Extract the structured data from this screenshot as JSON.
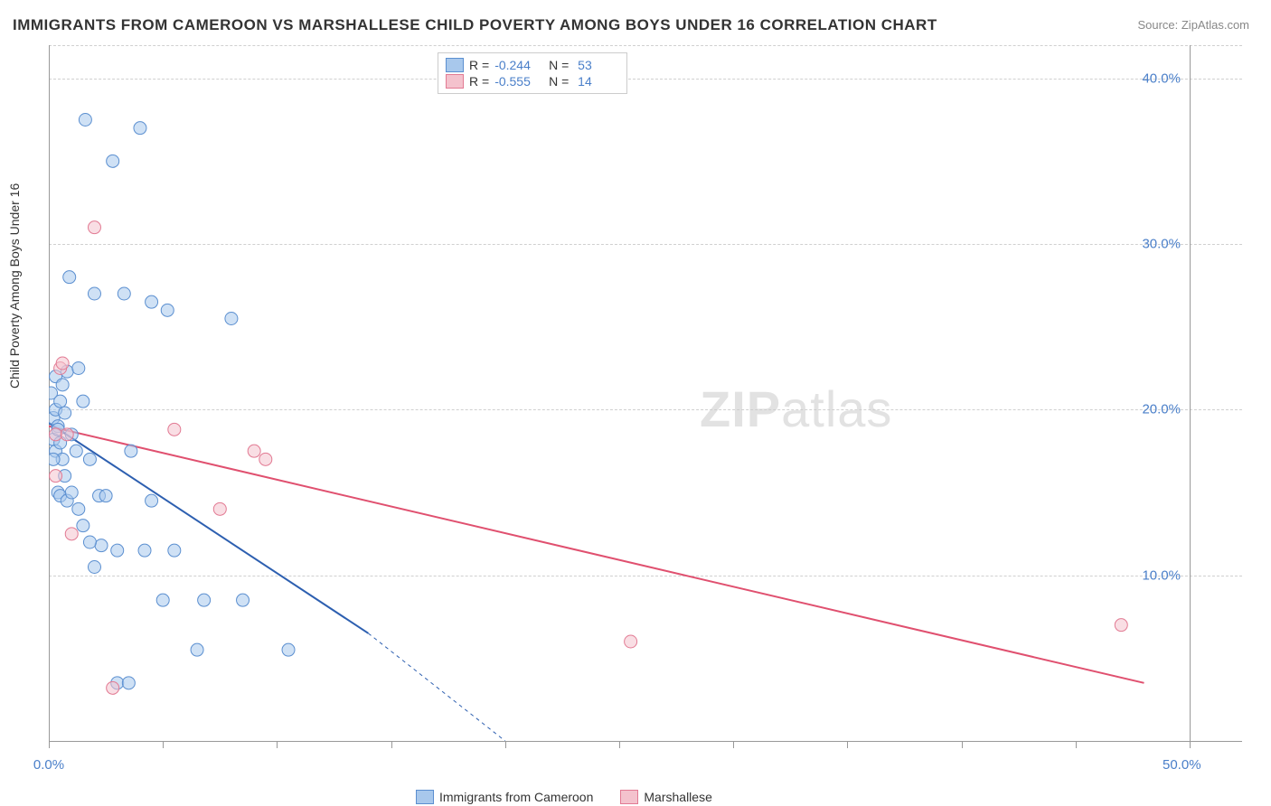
{
  "title": "IMMIGRANTS FROM CAMEROON VS MARSHALLESE CHILD POVERTY AMONG BOYS UNDER 16 CORRELATION CHART",
  "source": "Source: ZipAtlas.com",
  "y_axis_label": "Child Poverty Among Boys Under 16",
  "watermark_bold": "ZIP",
  "watermark_light": "atlas",
  "chart": {
    "type": "scatter",
    "background_color": "#ffffff",
    "grid_color": "#d0d0d0",
    "axis_color": "#999999",
    "tick_label_color": "#4a7fc9",
    "xlim": [
      0,
      50
    ],
    "ylim": [
      0,
      42
    ],
    "x_ticks": [
      0,
      5,
      10,
      15,
      20,
      25,
      30,
      35,
      40,
      45,
      50
    ],
    "x_tick_labels": {
      "0": "0.0%",
      "50": "50.0%"
    },
    "y_gridlines": [
      10,
      20,
      30,
      40
    ],
    "y_tick_labels": {
      "10": "10.0%",
      "20": "20.0%",
      "30": "30.0%",
      "40": "40.0%"
    },
    "marker_radius": 7,
    "marker_opacity": 0.55,
    "series": [
      {
        "name": "Immigrants from Cameroon",
        "color_fill": "#a8c8ec",
        "color_stroke": "#5b8fd0",
        "r": -0.244,
        "n": 53,
        "trend": {
          "x1": 0,
          "y1": 19.2,
          "x2": 14,
          "y2": 6.5,
          "dash_to_x": 20,
          "dash_to_y": 0,
          "color": "#2d5fb0",
          "width": 2
        },
        "points": [
          [
            0.1,
            21.0
          ],
          [
            0.2,
            19.5
          ],
          [
            0.2,
            18.2
          ],
          [
            0.3,
            20.0
          ],
          [
            0.3,
            17.5
          ],
          [
            0.3,
            22.0
          ],
          [
            0.4,
            19.0
          ],
          [
            0.4,
            15.0
          ],
          [
            0.5,
            14.8
          ],
          [
            0.5,
            20.5
          ],
          [
            0.5,
            18.0
          ],
          [
            0.6,
            21.5
          ],
          [
            0.6,
            17.0
          ],
          [
            0.7,
            16.0
          ],
          [
            0.7,
            19.8
          ],
          [
            0.8,
            22.3
          ],
          [
            0.8,
            14.5
          ],
          [
            0.9,
            28.0
          ],
          [
            1.0,
            15.0
          ],
          [
            1.0,
            18.5
          ],
          [
            1.2,
            17.5
          ],
          [
            1.3,
            22.5
          ],
          [
            1.3,
            14.0
          ],
          [
            1.5,
            20.5
          ],
          [
            1.5,
            13.0
          ],
          [
            1.6,
            37.5
          ],
          [
            1.8,
            17.0
          ],
          [
            2.0,
            10.5
          ],
          [
            2.0,
            27.0
          ],
          [
            2.2,
            14.8
          ],
          [
            2.3,
            11.8
          ],
          [
            2.5,
            14.8
          ],
          [
            2.8,
            35.0
          ],
          [
            3.0,
            11.5
          ],
          [
            3.0,
            3.5
          ],
          [
            3.3,
            27.0
          ],
          [
            3.5,
            3.5
          ],
          [
            3.6,
            17.5
          ],
          [
            4.0,
            37.0
          ],
          [
            4.2,
            11.5
          ],
          [
            4.5,
            14.5
          ],
          [
            4.5,
            26.5
          ],
          [
            5.0,
            8.5
          ],
          [
            5.2,
            26.0
          ],
          [
            5.5,
            11.5
          ],
          [
            6.5,
            5.5
          ],
          [
            6.8,
            8.5
          ],
          [
            8.0,
            25.5
          ],
          [
            8.5,
            8.5
          ],
          [
            10.5,
            5.5
          ],
          [
            0.2,
            17.0
          ],
          [
            0.4,
            18.8
          ],
          [
            1.8,
            12.0
          ]
        ]
      },
      {
        "name": "Marshallese",
        "color_fill": "#f4c2cd",
        "color_stroke": "#e27a93",
        "r": -0.555,
        "n": 14,
        "trend": {
          "x1": 0,
          "y1": 19.0,
          "x2": 48,
          "y2": 3.5,
          "color": "#e0506f",
          "width": 2
        },
        "points": [
          [
            0.3,
            18.5
          ],
          [
            0.3,
            16.0
          ],
          [
            0.5,
            22.5
          ],
          [
            0.6,
            22.8
          ],
          [
            0.8,
            18.5
          ],
          [
            1.0,
            12.5
          ],
          [
            2.0,
            31.0
          ],
          [
            2.8,
            3.2
          ],
          [
            5.5,
            18.8
          ],
          [
            7.5,
            14.0
          ],
          [
            9.0,
            17.5
          ],
          [
            9.5,
            17.0
          ],
          [
            25.5,
            6.0
          ],
          [
            47.0,
            7.0
          ]
        ]
      }
    ]
  },
  "legend_bottom": [
    {
      "label": "Immigrants from Cameroon",
      "fill": "#a8c8ec",
      "stroke": "#5b8fd0"
    },
    {
      "label": "Marshallese",
      "fill": "#f4c2cd",
      "stroke": "#e27a93"
    }
  ]
}
